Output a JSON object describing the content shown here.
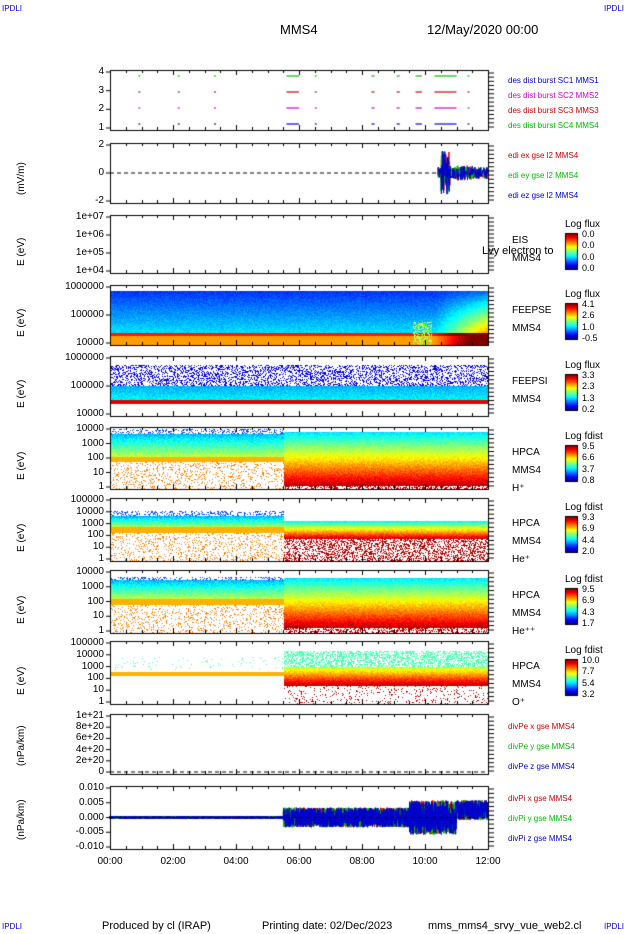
{
  "header": {
    "corner_label": "IPDLI",
    "spacecraft": "MMS4",
    "datetime": "12/May/2020 00:00"
  },
  "footer": {
    "produced_by": "Produced by cl (IRAP)",
    "printing_date": "Printing date: 02/Dec/2023",
    "filename": "mms_mms4_srvy_vue_web2.cl"
  },
  "colors": {
    "blue": "#0000cc",
    "magenta": "#cc00cc",
    "red": "#cc0000",
    "green": "#00bb00",
    "black": "#000000"
  },
  "chart_data": [
    {
      "type": "scatter",
      "id": "burst",
      "ylabel": "",
      "yticks": [
        "1",
        "2",
        "3",
        "4"
      ],
      "ylim": [
        0.5,
        4.5
      ],
      "legend": [
        {
          "text": "des dist burst SC1 MMS1",
          "color": "#0000cc"
        },
        {
          "text": "des dist burst SC2 MMS2",
          "color": "#cc00cc"
        },
        {
          "text": "des dist burst SC3 MMS3",
          "color": "#cc0000"
        },
        {
          "text": "des dist burst SC4 MMS4",
          "color": "#00bb00"
        }
      ],
      "intervals_hours": [
        [
          0.9,
          0.95
        ],
        [
          2.15,
          2.2
        ],
        [
          3.3,
          3.35
        ],
        [
          5.6,
          6.0
        ],
        [
          6.5,
          6.55
        ],
        [
          8.3,
          8.4
        ],
        [
          9.1,
          9.2
        ],
        [
          9.7,
          9.9
        ],
        [
          10.3,
          11.0
        ],
        [
          11.35,
          11.4
        ]
      ],
      "note_levels": [
        1,
        2,
        3,
        4
      ]
    },
    {
      "type": "line",
      "id": "edi",
      "ylabel": "(mV/m)",
      "yticks": [
        "-2",
        "0",
        "2"
      ],
      "ylim": [
        -3.5,
        3.5
      ],
      "legend": [
        {
          "text": "edi ex gse l2 MMS4",
          "color": "#cc0000"
        },
        {
          "text": "edi ey gse l2 MMS4",
          "color": "#00bb00"
        },
        {
          "text": "edi ez gse l2 MMS4",
          "color": "#0000cc"
        }
      ],
      "time_range_hours": [
        10.4,
        12.0
      ],
      "amplitude": 3.0
    },
    {
      "type": "heatmap",
      "id": "eis",
      "ylabel": "E (eV)",
      "yticks": [
        "1e+04",
        "1e+05",
        "1e+06",
        "1e+07"
      ],
      "labels": [
        "EIS",
        "MMS4"
      ],
      "overlay_text": "Lvy electron to",
      "colorbar_title": "Log flux",
      "colorbar_ticks": [
        "0.0",
        "0.0",
        "0.0",
        "0.0"
      ]
    },
    {
      "type": "heatmap",
      "id": "feepse",
      "ylabel": "E (eV)",
      "yticks": [
        "10000",
        "100000",
        "1000000"
      ],
      "labels": [
        "FEEPSE",
        "MMS4"
      ],
      "colorbar_title": "Log flux",
      "colorbar_ticks": [
        "4.1",
        "2.6",
        "1.0",
        "-0.5"
      ]
    },
    {
      "type": "heatmap",
      "id": "feepsi",
      "ylabel": "E (eV)",
      "yticks": [
        "10000",
        "100000",
        "1000000"
      ],
      "labels": [
        "FEEPSI",
        "MMS4"
      ],
      "colorbar_title": "Log flux",
      "colorbar_ticks": [
        "3.3",
        "2.3",
        "1.3",
        "0.2"
      ]
    },
    {
      "type": "heatmap",
      "id": "hpca_h",
      "ylabel": "E (eV)",
      "yticks": [
        "1",
        "10",
        "100",
        "1000",
        "10000"
      ],
      "labels": [
        "HPCA",
        "MMS4",
        "H⁺"
      ],
      "colorbar_title": "Log fdist",
      "colorbar_ticks": [
        "9.5",
        "6.6",
        "3.7",
        "0.8"
      ]
    },
    {
      "type": "heatmap",
      "id": "hpca_he",
      "ylabel": "E (eV)",
      "yticks": [
        "1",
        "10",
        "100",
        "1000",
        "10000",
        "100000"
      ],
      "labels": [
        "HPCA",
        "MMS4",
        "He⁺"
      ],
      "colorbar_title": "Log fdist",
      "colorbar_ticks": [
        "9.3",
        "6.9",
        "4.4",
        "2.0"
      ]
    },
    {
      "type": "heatmap",
      "id": "hpca_hepp",
      "ylabel": "E (eV)",
      "yticks": [
        "1",
        "10",
        "100",
        "1000",
        "10000"
      ],
      "labels": [
        "HPCA",
        "MMS4",
        "He⁺⁺"
      ],
      "colorbar_title": "Log fdist",
      "colorbar_ticks": [
        "9.5",
        "6.9",
        "4.3",
        "1.7"
      ]
    },
    {
      "type": "heatmap",
      "id": "hpca_o",
      "ylabel": "E (eV)",
      "yticks": [
        "1",
        "10",
        "100",
        "1000",
        "10000",
        "100000"
      ],
      "labels": [
        "HPCA",
        "MMS4",
        "O⁺"
      ],
      "colorbar_title": "Log fdist",
      "colorbar_ticks": [
        "10.0",
        "7.7",
        "5.4",
        "3.2"
      ]
    },
    {
      "type": "line",
      "id": "divpe",
      "ylabel": "(nPa/km)",
      "yticks": [
        "0",
        "2e+20",
        "4e+20",
        "6e+20",
        "8e+20",
        "1e+21"
      ],
      "ylim": [
        0,
        1e+21
      ],
      "legend": [
        {
          "text": "divPe x gse MMS4",
          "color": "#cc0000"
        },
        {
          "text": "divPe y gse MMS4",
          "color": "#00bb00"
        },
        {
          "text": "divPe z gse MMS4",
          "color": "#0000cc"
        }
      ]
    },
    {
      "type": "line",
      "id": "divpi",
      "ylabel": "(nPa/km)",
      "yticks": [
        "-0.010",
        "-0.005",
        "0.000",
        "0.005",
        "0.010"
      ],
      "ylim": [
        -0.012,
        0.012
      ],
      "legend": [
        {
          "text": "divPi x gse MMS4",
          "color": "#cc0000"
        },
        {
          "text": "divPi y gse MMS4",
          "color": "#00bb00"
        },
        {
          "text": "divPi z gse MMS4",
          "color": "#0000cc"
        }
      ]
    }
  ],
  "xaxis": {
    "ticks": [
      "00:00",
      "02:00",
      "04:00",
      "06:00",
      "08:00",
      "10:00",
      "12:00"
    ],
    "range_hours": [
      0,
      12
    ]
  }
}
